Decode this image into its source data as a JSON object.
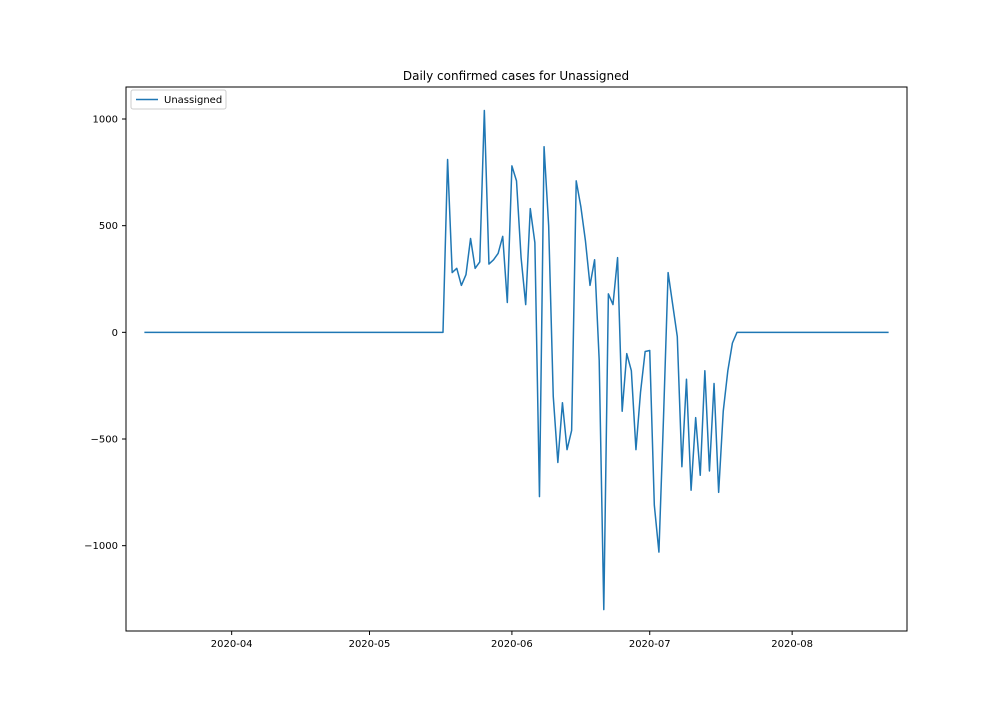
{
  "chart_data": {
    "type": "line",
    "title": "Daily confirmed cases for Unassigned",
    "xlabel": "",
    "ylabel": "",
    "x_start": "2020-03-13",
    "x_end": "2020-08-22",
    "xlim": [
      "2020-03-09",
      "2020-08-26"
    ],
    "ylim": [
      -1400,
      1150
    ],
    "grid": false,
    "legend_position": "upper-left",
    "series_color": "#1f77b4",
    "x_ticks": [
      {
        "date": "2020-04-01",
        "label": "2020-04"
      },
      {
        "date": "2020-05-01",
        "label": "2020-05"
      },
      {
        "date": "2020-06-01",
        "label": "2020-06"
      },
      {
        "date": "2020-07-01",
        "label": "2020-07"
      },
      {
        "date": "2020-08-01",
        "label": "2020-08"
      }
    ],
    "y_ticks": [
      {
        "value": 1000,
        "label": "1000"
      },
      {
        "value": 500,
        "label": "500"
      },
      {
        "value": 0,
        "label": "0"
      },
      {
        "value": -500,
        "label": "−500"
      },
      {
        "value": -1000,
        "label": "−1000"
      }
    ],
    "series": [
      {
        "name": "Unassigned",
        "points": [
          [
            "2020-03-13",
            0
          ],
          [
            "2020-05-17",
            0
          ],
          [
            "2020-05-18",
            810
          ],
          [
            "2020-05-19",
            280
          ],
          [
            "2020-05-20",
            300
          ],
          [
            "2020-05-21",
            220
          ],
          [
            "2020-05-22",
            270
          ],
          [
            "2020-05-23",
            440
          ],
          [
            "2020-05-24",
            300
          ],
          [
            "2020-05-25",
            330
          ],
          [
            "2020-05-26",
            1040
          ],
          [
            "2020-05-27",
            320
          ],
          [
            "2020-05-28",
            340
          ],
          [
            "2020-05-29",
            370
          ],
          [
            "2020-05-30",
            450
          ],
          [
            "2020-05-31",
            140
          ],
          [
            "2020-06-01",
            780
          ],
          [
            "2020-06-02",
            710
          ],
          [
            "2020-06-03",
            350
          ],
          [
            "2020-06-04",
            130
          ],
          [
            "2020-06-05",
            580
          ],
          [
            "2020-06-06",
            420
          ],
          [
            "2020-06-07",
            -770
          ],
          [
            "2020-06-08",
            870
          ],
          [
            "2020-06-09",
            500
          ],
          [
            "2020-06-10",
            -300
          ],
          [
            "2020-06-11",
            -610
          ],
          [
            "2020-06-12",
            -330
          ],
          [
            "2020-06-13",
            -550
          ],
          [
            "2020-06-14",
            -460
          ],
          [
            "2020-06-15",
            710
          ],
          [
            "2020-06-16",
            590
          ],
          [
            "2020-06-17",
            430
          ],
          [
            "2020-06-18",
            220
          ],
          [
            "2020-06-19",
            340
          ],
          [
            "2020-06-20",
            -130
          ],
          [
            "2020-06-21",
            -1300
          ],
          [
            "2020-06-22",
            180
          ],
          [
            "2020-06-23",
            130
          ],
          [
            "2020-06-24",
            350
          ],
          [
            "2020-06-25",
            -370
          ],
          [
            "2020-06-26",
            -100
          ],
          [
            "2020-06-27",
            -180
          ],
          [
            "2020-06-28",
            -550
          ],
          [
            "2020-06-29",
            -280
          ],
          [
            "2020-06-30",
            -90
          ],
          [
            "2020-07-01",
            -85
          ],
          [
            "2020-07-02",
            -810
          ],
          [
            "2020-07-03",
            -1030
          ],
          [
            "2020-07-04",
            -400
          ],
          [
            "2020-07-05",
            280
          ],
          [
            "2020-07-06",
            130
          ],
          [
            "2020-07-07",
            -20
          ],
          [
            "2020-07-08",
            -630
          ],
          [
            "2020-07-09",
            -220
          ],
          [
            "2020-07-10",
            -740
          ],
          [
            "2020-07-11",
            -400
          ],
          [
            "2020-07-12",
            -670
          ],
          [
            "2020-07-13",
            -180
          ],
          [
            "2020-07-14",
            -650
          ],
          [
            "2020-07-15",
            -240
          ],
          [
            "2020-07-16",
            -750
          ],
          [
            "2020-07-17",
            -370
          ],
          [
            "2020-07-18",
            -180
          ],
          [
            "2020-07-19",
            -50
          ],
          [
            "2020-07-20",
            0
          ],
          [
            "2020-08-22",
            0
          ]
        ]
      }
    ]
  }
}
